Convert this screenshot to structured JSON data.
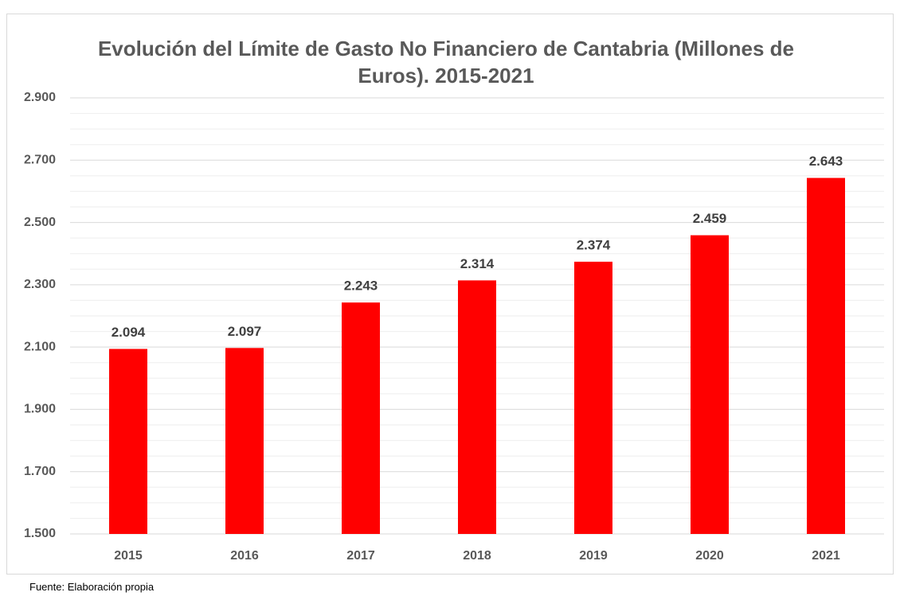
{
  "chart_data": {
    "type": "bar",
    "title": "Evolución del Límite de Gasto No Financiero de Cantabria (Millones de Euros). 2015-2021",
    "source": "Fuente: Elaboración propia",
    "categories": [
      "2015",
      "2016",
      "2017",
      "2018",
      "2019",
      "2020",
      "2021"
    ],
    "values": [
      2094,
      2097,
      2243,
      2314,
      2374,
      2459,
      2643
    ],
    "value_labels": [
      "2.094",
      "2.097",
      "2.243",
      "2.314",
      "2.374",
      "2.459",
      "2.643"
    ],
    "color": "#ff0000",
    "ylim": [
      1500,
      2900
    ],
    "yticks": [
      {
        "value": 1500,
        "label": "1.500"
      },
      {
        "value": 1700,
        "label": "1.700"
      },
      {
        "value": 1900,
        "label": "1.900"
      },
      {
        "value": 2100,
        "label": "2.100"
      },
      {
        "value": 2300,
        "label": "2.300"
      },
      {
        "value": 2500,
        "label": "2.500"
      },
      {
        "value": 2700,
        "label": "2.700"
      },
      {
        "value": 2900,
        "label": "2.900"
      }
    ],
    "minor_yticks": [
      1550,
      1600,
      1650,
      1750,
      1800,
      1850,
      1950,
      2000,
      2050,
      2150,
      2200,
      2250,
      2350,
      2400,
      2450,
      2550,
      2600,
      2650,
      2750,
      2800,
      2850
    ],
    "grid": true
  }
}
